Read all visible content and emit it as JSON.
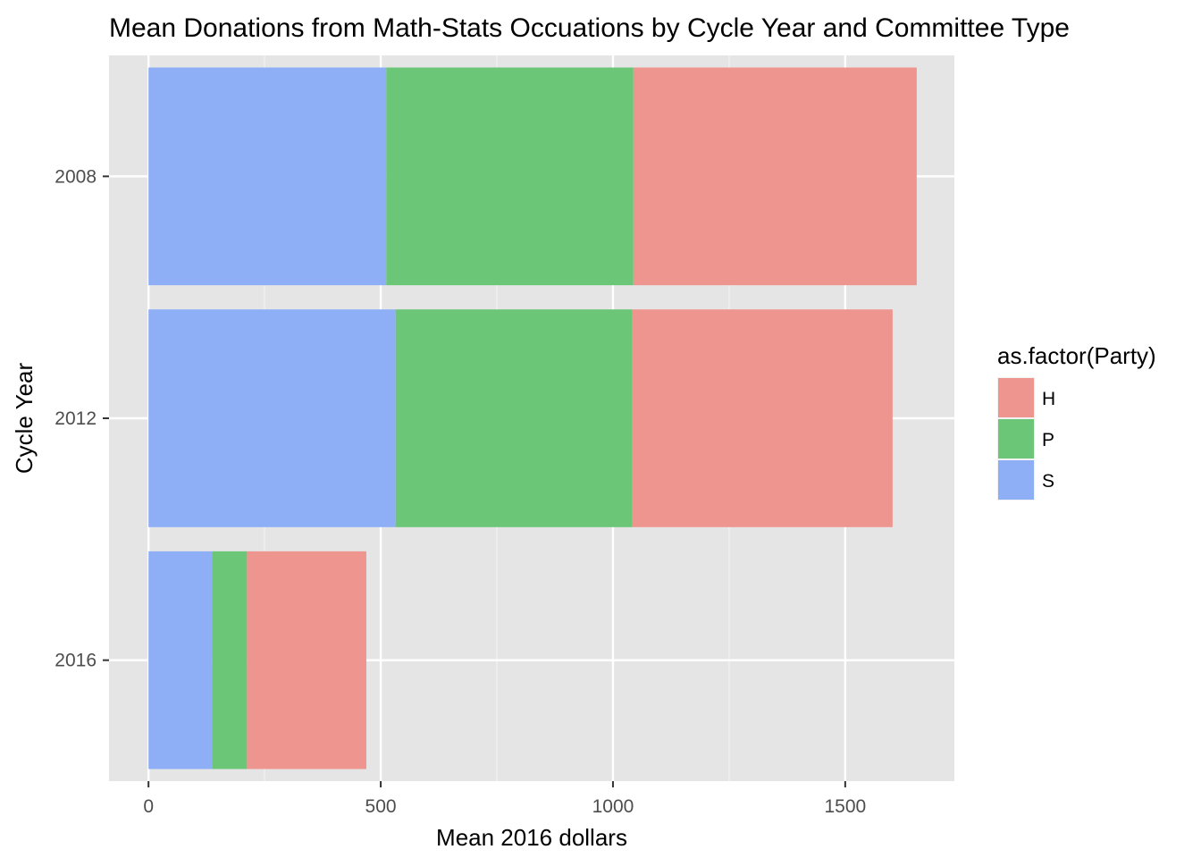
{
  "chart_data": {
    "type": "bar",
    "orientation": "horizontal",
    "stacked": true,
    "title": "Mean Donations from Math-Stats Occuations by Cycle Year and Committee Type",
    "xlabel": "Mean 2016 dollars",
    "ylabel": "Cycle Year",
    "categories": [
      "2008",
      "2012",
      "2016"
    ],
    "xlim": [
      -85,
      1735
    ],
    "x_ticks": [
      0,
      500,
      1000,
      1500
    ],
    "x_tick_labels": [
      "0",
      "500",
      "1000",
      "1500"
    ],
    "grid": true,
    "legend": {
      "title": "as.factor(Party)",
      "position": "right"
    },
    "series": [
      {
        "name": "S",
        "color": "#8eaef6",
        "values": [
          512,
          532,
          137
        ]
      },
      {
        "name": "P",
        "color": "#6cc677",
        "values": [
          532,
          510,
          75
        ]
      },
      {
        "name": "H",
        "color": "#ef9590",
        "values": [
          610,
          560,
          257
        ]
      }
    ]
  }
}
